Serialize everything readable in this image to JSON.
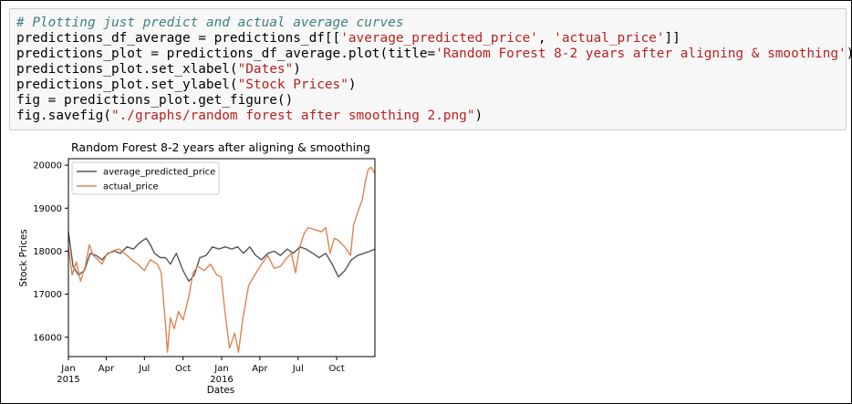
{
  "notebook": {
    "code_lines": [
      {
        "segments": [
          {
            "t": "# Plotting just predict and actual average curves",
            "c": "comment"
          }
        ]
      },
      {
        "segments": [
          {
            "t": "predictions_df_average = predictions_df[[",
            "c": ""
          },
          {
            "t": "'average_predicted_price'",
            "c": "str"
          },
          {
            "t": ", ",
            "c": ""
          },
          {
            "t": "'actual_price'",
            "c": "str"
          },
          {
            "t": "]]",
            "c": ""
          }
        ]
      },
      {
        "segments": [
          {
            "t": "predictions_plot = predictions_df_average.plot(title=",
            "c": ""
          },
          {
            "t": "'Random Forest 8-2 years after aligning & smoothing'",
            "c": "str"
          },
          {
            "t": ")",
            "c": ""
          }
        ]
      },
      {
        "segments": [
          {
            "t": "predictions_plot.set_xlabel(",
            "c": ""
          },
          {
            "t": "\"Dates\"",
            "c": "str"
          },
          {
            "t": ")",
            "c": ""
          }
        ]
      },
      {
        "segments": [
          {
            "t": "predictions_plot.set_ylabel(",
            "c": ""
          },
          {
            "t": "\"Stock Prices\"",
            "c": "str"
          },
          {
            "t": ")",
            "c": ""
          }
        ]
      },
      {
        "segments": [
          {
            "t": "fig = predictions_plot.get_figure()",
            "c": ""
          }
        ]
      },
      {
        "segments": [
          {
            "t": "fig.savefig(",
            "c": ""
          },
          {
            "t": "\"./graphs/random forest after smoothing 2.png\"",
            "c": "str"
          },
          {
            "t": ")",
            "c": ""
          }
        ]
      }
    ]
  },
  "chart_data": {
    "type": "line",
    "title": "Random Forest 8-2 years after aligning & smoothing",
    "xlabel": "Dates",
    "ylabel": "Stock Prices",
    "x_range": [
      "2015-01-01",
      "2016-12-31"
    ],
    "ylim": [
      15550,
      20150
    ],
    "y_ticks": [
      16000,
      17000,
      18000,
      19000,
      20000
    ],
    "x_ticks": [
      {
        "date": "2015-01-01",
        "label": "Jan",
        "sub": "2015"
      },
      {
        "date": "2015-04-01",
        "label": "Apr",
        "sub": ""
      },
      {
        "date": "2015-07-01",
        "label": "Jul",
        "sub": ""
      },
      {
        "date": "2015-10-01",
        "label": "Oct",
        "sub": ""
      },
      {
        "date": "2016-01-01",
        "label": "Jan",
        "sub": "2016"
      },
      {
        "date": "2016-04-01",
        "label": "Apr",
        "sub": ""
      },
      {
        "date": "2016-07-01",
        "label": "Jul",
        "sub": ""
      },
      {
        "date": "2016-10-01",
        "label": "Oct",
        "sub": ""
      }
    ],
    "grid": false,
    "legend_position": "top-left",
    "series": [
      {
        "name": "average_predicted_price",
        "color": "#555555",
        "points": [
          [
            "2015-01-01",
            18450
          ],
          [
            "2015-01-12",
            17650
          ],
          [
            "2015-01-25",
            17450
          ],
          [
            "2015-02-08",
            17550
          ],
          [
            "2015-02-22",
            17950
          ],
          [
            "2015-03-08",
            17900
          ],
          [
            "2015-03-22",
            17800
          ],
          [
            "2015-04-05",
            17950
          ],
          [
            "2015-04-20",
            18000
          ],
          [
            "2015-05-05",
            17950
          ],
          [
            "2015-05-20",
            18100
          ],
          [
            "2015-06-05",
            18050
          ],
          [
            "2015-06-20",
            18200
          ],
          [
            "2015-07-05",
            18300
          ],
          [
            "2015-07-15",
            18150
          ],
          [
            "2015-07-25",
            17950
          ],
          [
            "2015-08-08",
            17850
          ],
          [
            "2015-08-20",
            17850
          ],
          [
            "2015-09-01",
            17700
          ],
          [
            "2015-09-15",
            17950
          ],
          [
            "2015-10-01",
            17550
          ],
          [
            "2015-10-15",
            17300
          ],
          [
            "2015-10-28",
            17450
          ],
          [
            "2015-11-10",
            17850
          ],
          [
            "2015-11-25",
            17900
          ],
          [
            "2015-12-10",
            18100
          ],
          [
            "2015-12-25",
            18050
          ],
          [
            "2016-01-10",
            18100
          ],
          [
            "2016-01-25",
            18050
          ],
          [
            "2016-02-08",
            18100
          ],
          [
            "2016-02-22",
            17950
          ],
          [
            "2016-03-08",
            18100
          ],
          [
            "2016-03-22",
            17900
          ],
          [
            "2016-04-05",
            17800
          ],
          [
            "2016-04-20",
            17950
          ],
          [
            "2016-05-05",
            18000
          ],
          [
            "2016-05-20",
            17900
          ],
          [
            "2016-06-05",
            18050
          ],
          [
            "2016-06-20",
            17950
          ],
          [
            "2016-07-05",
            18100
          ],
          [
            "2016-07-20",
            18050
          ],
          [
            "2016-08-05",
            17950
          ],
          [
            "2016-08-20",
            17850
          ],
          [
            "2016-09-05",
            17950
          ],
          [
            "2016-09-20",
            17700
          ],
          [
            "2016-10-05",
            17400
          ],
          [
            "2016-10-20",
            17550
          ],
          [
            "2016-11-05",
            17800
          ],
          [
            "2016-11-20",
            17900
          ],
          [
            "2016-12-05",
            17950
          ],
          [
            "2016-12-20",
            18000
          ],
          [
            "2016-12-31",
            18050
          ]
        ]
      },
      {
        "name": "actual_price",
        "color": "#dd8452",
        "points": [
          [
            "2015-01-01",
            18100
          ],
          [
            "2015-01-10",
            17450
          ],
          [
            "2015-01-20",
            17750
          ],
          [
            "2015-01-30",
            17300
          ],
          [
            "2015-02-10",
            17650
          ],
          [
            "2015-02-20",
            18150
          ],
          [
            "2015-03-01",
            17900
          ],
          [
            "2015-03-12",
            17800
          ],
          [
            "2015-03-22",
            17700
          ],
          [
            "2015-04-01",
            17900
          ],
          [
            "2015-04-15",
            18000
          ],
          [
            "2015-05-01",
            18050
          ],
          [
            "2015-05-15",
            17950
          ],
          [
            "2015-06-01",
            17800
          ],
          [
            "2015-06-15",
            17700
          ],
          [
            "2015-07-01",
            17550
          ],
          [
            "2015-07-15",
            17800
          ],
          [
            "2015-08-01",
            17700
          ],
          [
            "2015-08-10",
            17500
          ],
          [
            "2015-08-20",
            16350
          ],
          [
            "2015-08-25",
            15650
          ],
          [
            "2015-09-01",
            16450
          ],
          [
            "2015-09-10",
            16200
          ],
          [
            "2015-09-20",
            16600
          ],
          [
            "2015-10-01",
            16400
          ],
          [
            "2015-10-15",
            16950
          ],
          [
            "2015-10-25",
            17500
          ],
          [
            "2015-11-05",
            17650
          ],
          [
            "2015-11-20",
            17550
          ],
          [
            "2015-12-05",
            17700
          ],
          [
            "2015-12-20",
            17450
          ],
          [
            "2015-12-31",
            17400
          ],
          [
            "2016-01-10",
            16500
          ],
          [
            "2016-01-20",
            15750
          ],
          [
            "2016-02-01",
            16100
          ],
          [
            "2016-02-10",
            15650
          ],
          [
            "2016-02-20",
            16400
          ],
          [
            "2016-03-05",
            17200
          ],
          [
            "2016-03-20",
            17450
          ],
          [
            "2016-04-05",
            17700
          ],
          [
            "2016-04-20",
            17900
          ],
          [
            "2016-05-05",
            17600
          ],
          [
            "2016-05-20",
            17650
          ],
          [
            "2016-06-05",
            17850
          ],
          [
            "2016-06-15",
            17950
          ],
          [
            "2016-06-25",
            17500
          ],
          [
            "2016-07-05",
            18100
          ],
          [
            "2016-07-15",
            18400
          ],
          [
            "2016-07-25",
            18550
          ],
          [
            "2016-08-10",
            18500
          ],
          [
            "2016-08-25",
            18450
          ],
          [
            "2016-09-05",
            18550
          ],
          [
            "2016-09-15",
            17950
          ],
          [
            "2016-09-25",
            18300
          ],
          [
            "2016-10-05",
            18250
          ],
          [
            "2016-10-20",
            18100
          ],
          [
            "2016-11-03",
            17900
          ],
          [
            "2016-11-10",
            18600
          ],
          [
            "2016-11-20",
            18900
          ],
          [
            "2016-12-01",
            19200
          ],
          [
            "2016-12-08",
            19600
          ],
          [
            "2016-12-15",
            19900
          ],
          [
            "2016-12-22",
            19950
          ],
          [
            "2016-12-31",
            19800
          ]
        ]
      }
    ]
  }
}
